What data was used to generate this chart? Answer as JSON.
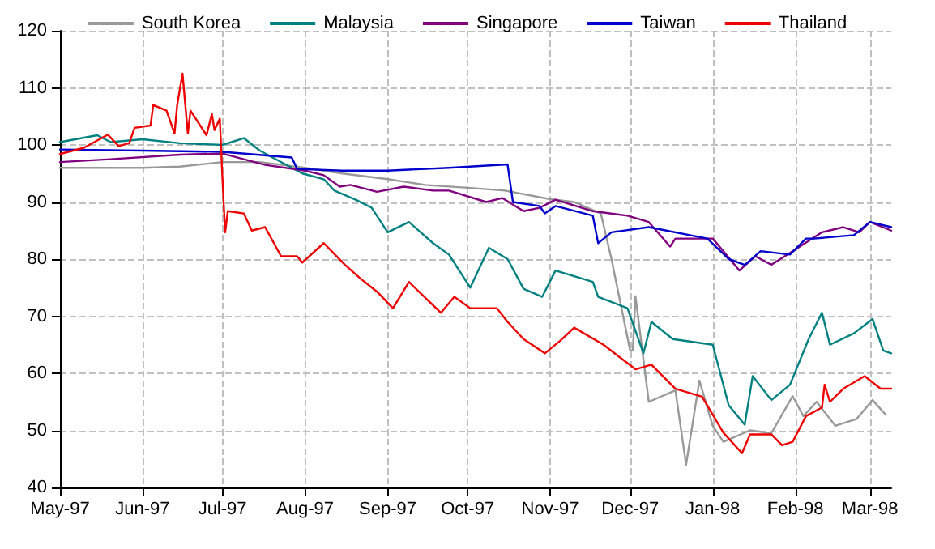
{
  "chart_data": {
    "type": "line",
    "xlim": [
      "1997-05-01",
      "1998-03-09"
    ],
    "ylim": [
      40,
      120
    ],
    "yticks": [
      40,
      50,
      60,
      70,
      80,
      90,
      100,
      110,
      120
    ],
    "xticks": [
      {
        "value": "1997-05-01",
        "label": "May-97"
      },
      {
        "value": "1997-06-01",
        "label": "Jun-97"
      },
      {
        "value": "1997-07-01",
        "label": "Jul-97"
      },
      {
        "value": "1997-08-01",
        "label": "Aug-97"
      },
      {
        "value": "1997-09-01",
        "label": "Sep-97"
      },
      {
        "value": "1997-10-01",
        "label": "Oct-97"
      },
      {
        "value": "1997-11-01",
        "label": "Nov-97"
      },
      {
        "value": "1997-12-01",
        "label": "Dec-97"
      },
      {
        "value": "1998-01-01",
        "label": "Jan-98"
      },
      {
        "value": "1998-02-01",
        "label": "Feb-98"
      },
      {
        "value": "1998-03-01",
        "label": "Mar-98"
      }
    ],
    "grid": true,
    "legend": "top",
    "marker": "none",
    "line_style": "solid",
    "series": [
      {
        "name": "South Korea",
        "color": "#999999",
        "x": [
          "1997-05-01",
          "1997-05-15",
          "1997-06-01",
          "1997-06-15",
          "1997-07-01",
          "1997-07-15",
          "1997-08-01",
          "1997-08-15",
          "1997-09-01",
          "1997-09-15",
          "1997-10-01",
          "1997-10-15",
          "1997-11-01",
          "1997-11-10",
          "1997-11-20",
          "1997-11-24",
          "1997-12-01",
          "1997-12-02",
          "1997-12-03",
          "1997-12-08",
          "1997-12-18",
          "1997-12-22",
          "1997-12-27",
          "1998-01-01",
          "1998-01-05",
          "1998-01-15",
          "1998-01-23",
          "1998-01-31",
          "1998-02-04",
          "1998-02-09",
          "1998-02-16",
          "1998-02-24",
          "1998-03-02",
          "1998-03-07"
        ],
        "values": [
          96,
          96,
          96,
          96.2,
          97,
          97,
          96,
          95,
          94,
          93,
          92.5,
          92,
          90.5,
          90,
          88,
          80,
          64,
          64,
          73.5,
          55,
          57,
          44,
          58.7,
          50.8,
          48,
          50,
          49.5,
          56,
          52.5,
          55,
          50.8,
          52,
          55.3,
          52.7
        ]
      },
      {
        "name": "Malaysia",
        "color": "#008080",
        "x": [
          "1997-05-01",
          "1997-05-15",
          "1997-05-20",
          "1997-06-01",
          "1997-06-15",
          "1997-07-01",
          "1997-07-09",
          "1997-07-15",
          "1997-07-31",
          "1997-08-08",
          "1997-08-12",
          "1997-08-20",
          "1997-08-26",
          "1997-09-01",
          "1997-09-09",
          "1997-09-18",
          "1997-09-24",
          "1997-10-02",
          "1997-10-09",
          "1997-10-16",
          "1997-10-22",
          "1997-10-29",
          "1997-11-03",
          "1997-11-17",
          "1997-11-19",
          "1997-11-30",
          "1997-12-06",
          "1997-12-09",
          "1997-12-17",
          "1998-01-01",
          "1998-01-07",
          "1998-01-13",
          "1998-01-16",
          "1998-01-23",
          "1998-01-30",
          "1998-02-06",
          "1998-02-11",
          "1998-02-14",
          "1998-02-23",
          "1998-03-02",
          "1998-03-06",
          "1998-03-09"
        ],
        "values": [
          100.5,
          101.7,
          100.5,
          101,
          100.3,
          100,
          101.2,
          99,
          95,
          94,
          92,
          90.4,
          89,
          84.7,
          86.5,
          82.8,
          80.8,
          75,
          82,
          80,
          74.8,
          73.4,
          78,
          76,
          73.4,
          71.4,
          63.5,
          69,
          66,
          65,
          54.4,
          51,
          59.5,
          55.3,
          58,
          66,
          70.6,
          65,
          67,
          69.5,
          64,
          63.5
        ]
      },
      {
        "name": "Singapore",
        "color": "#800080",
        "x": [
          "1997-05-01",
          "1997-05-20",
          "1997-06-15",
          "1997-07-01",
          "1997-07-17",
          "1997-08-01",
          "1997-08-08",
          "1997-08-14",
          "1997-08-18",
          "1997-08-28",
          "1997-09-07",
          "1997-09-18",
          "1997-09-24",
          "1997-10-08",
          "1997-10-14",
          "1997-10-22",
          "1997-10-28",
          "1997-11-03",
          "1997-11-17",
          "1997-11-30",
          "1997-12-08",
          "1997-12-16",
          "1997-12-18",
          "1998-01-01",
          "1998-01-11",
          "1998-01-17",
          "1998-01-23",
          "1998-02-02",
          "1998-02-11",
          "1998-02-19",
          "1998-02-25",
          "1998-03-01",
          "1998-03-09"
        ],
        "values": [
          97,
          97.5,
          98.3,
          98.5,
          96.5,
          95.5,
          94.7,
          92.7,
          93,
          91.8,
          92.7,
          92,
          92,
          90,
          90.7,
          88.4,
          89,
          90.4,
          88.4,
          87.6,
          86.5,
          82.2,
          83.6,
          83.6,
          78,
          80.5,
          79,
          82,
          84.7,
          85.6,
          84.7,
          86.5,
          85
        ]
      },
      {
        "name": "Taiwan",
        "color": "#0000cc",
        "x": [
          "1997-05-01",
          "1997-06-01",
          "1997-07-01",
          "1997-07-27",
          "1997-07-29",
          "1997-08-15",
          "1997-09-01",
          "1997-09-24",
          "1997-10-16",
          "1997-10-18",
          "1997-10-28",
          "1997-10-30",
          "1997-11-03",
          "1997-11-17",
          "1997-11-19",
          "1997-11-24",
          "1997-12-08",
          "1997-12-30",
          "1998-01-07",
          "1998-01-13",
          "1998-01-19",
          "1998-01-30",
          "1998-02-05",
          "1998-02-08",
          "1998-02-23",
          "1998-03-01",
          "1998-03-09"
        ],
        "values": [
          99.2,
          99,
          98.8,
          97.8,
          95.8,
          95.5,
          95.5,
          96,
          96.6,
          90,
          89.3,
          88,
          89.3,
          87.6,
          82.8,
          84.7,
          85.6,
          83.6,
          80,
          79,
          81.4,
          80.8,
          83.6,
          83.6,
          84.2,
          86.5,
          85.6
        ]
      },
      {
        "name": "Thailand",
        "color": "#ee0000",
        "x": [
          "1997-05-01",
          "1997-05-10",
          "1997-05-19",
          "1997-05-23",
          "1997-05-27",
          "1997-05-29",
          "1997-06-04",
          "1997-06-05",
          "1997-06-10",
          "1997-06-13",
          "1997-06-14",
          "1997-06-16",
          "1997-06-18",
          "1997-06-19",
          "1997-06-25",
          "1997-06-27",
          "1997-06-28",
          "1997-06-30",
          "1997-07-01",
          "1997-07-02",
          "1997-07-03",
          "1997-07-09",
          "1997-07-12",
          "1997-07-17",
          "1997-07-23",
          "1997-07-29",
          "1997-07-31",
          "1997-08-08",
          "1997-08-16",
          "1997-08-22",
          "1997-08-28",
          "1997-09-03",
          "1997-09-09",
          "1997-09-21",
          "1997-09-26",
          "1997-10-02",
          "1997-10-12",
          "1997-10-16",
          "1997-10-22",
          "1997-10-30",
          "1997-11-05",
          "1997-11-10",
          "1997-11-21",
          "1997-12-03",
          "1997-12-09",
          "1997-12-18",
          "1997-12-28",
          "1998-01-05",
          "1998-01-12",
          "1998-01-15",
          "1998-01-23",
          "1998-01-27",
          "1998-01-31",
          "1998-02-05",
          "1998-02-11",
          "1998-02-12",
          "1998-02-14",
          "1998-02-19",
          "1998-02-27",
          "1998-03-05",
          "1998-03-09"
        ],
        "values": [
          98.4,
          99.5,
          101.8,
          99.8,
          100.3,
          103,
          103.4,
          107,
          106,
          102,
          107,
          112.5,
          102,
          106,
          101.7,
          105.4,
          102.6,
          104.6,
          94,
          84.7,
          88.4,
          88,
          85,
          85.6,
          80.5,
          80.5,
          79.4,
          82.8,
          79,
          76.5,
          74.3,
          71.4,
          76,
          70.6,
          73.4,
          71.4,
          71.4,
          69,
          66,
          63.5,
          65.8,
          68,
          65,
          60.7,
          61.5,
          57.3,
          55.9,
          49.6,
          46,
          49.3,
          49.3,
          47.4,
          48,
          52.5,
          54,
          58,
          55,
          57.3,
          59.5,
          57.3,
          57.3
        ]
      }
    ]
  }
}
